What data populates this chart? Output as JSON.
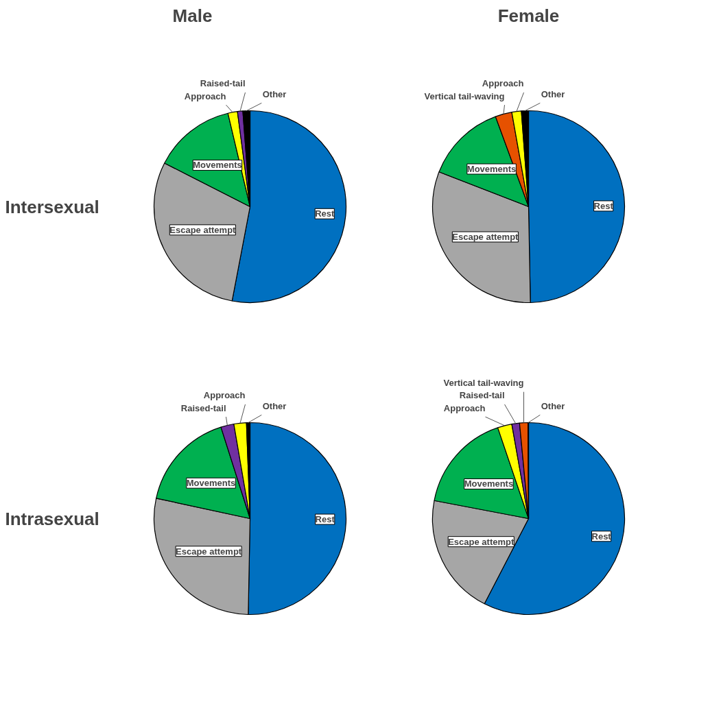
{
  "chart_data": [
    {
      "type": "pie",
      "title": "Male",
      "ylabel": "Intersexual",
      "categories": [
        "Rest",
        "Escape attempt",
        "Movements",
        "Approach",
        "Raised-tail",
        "Other"
      ],
      "values": [
        53.0,
        29.5,
        13.8,
        1.6,
        0.9,
        1.2
      ],
      "colors": [
        "#0070c0",
        "#a6a6a6",
        "#00b050",
        "#ffff00",
        "#7030a0",
        "#000000"
      ]
    },
    {
      "type": "pie",
      "title": "Female",
      "categories": [
        "Rest",
        "Escape attempt",
        "Movements",
        "Vertical tail-waving",
        "Approach",
        "Other"
      ],
      "values": [
        49.7,
        31.2,
        13.5,
        2.8,
        1.6,
        1.2
      ],
      "colors": [
        "#0070c0",
        "#a6a6a6",
        "#00b050",
        "#e65100",
        "#ffff00",
        "#000000"
      ]
    },
    {
      "type": "pie",
      "ylabel": "Intrasexual",
      "categories": [
        "Rest",
        "Escape attempt",
        "Movements",
        "Raised-tail",
        "Approach",
        "Other"
      ],
      "values": [
        50.3,
        28.1,
        16.7,
        2.2,
        2.1,
        0.6
      ],
      "colors": [
        "#0070c0",
        "#a6a6a6",
        "#00b050",
        "#7030a0",
        "#ffff00",
        "#000000"
      ]
    },
    {
      "type": "pie",
      "categories": [
        "Rest",
        "Escape attempt",
        "Movements",
        "Approach",
        "Raised-tail",
        "Vertical tail-waving",
        "Other"
      ],
      "values": [
        57.6,
        20.4,
        16.8,
        2.4,
        1.3,
        1.4,
        0.1
      ],
      "colors": [
        "#0070c0",
        "#a6a6a6",
        "#00b050",
        "#ffff00",
        "#7030a0",
        "#e65100",
        "#000000"
      ]
    }
  ]
}
